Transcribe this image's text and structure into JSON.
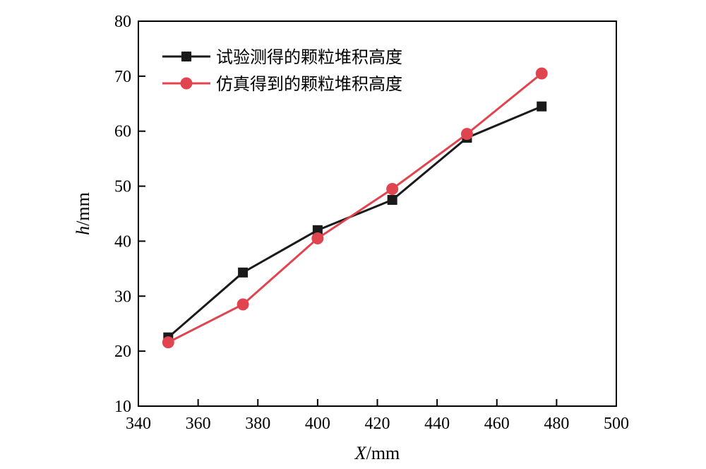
{
  "chart_data": {
    "type": "line",
    "xlabel_var": "X",
    "xlabel_unit": "/mm",
    "ylabel_var": "h",
    "ylabel_unit": "/mm",
    "xlim": [
      340,
      500
    ],
    "ylim": [
      10,
      80
    ],
    "xticks": [
      340,
      360,
      380,
      400,
      420,
      440,
      460,
      480,
      500
    ],
    "yticks": [
      10,
      20,
      30,
      40,
      50,
      60,
      70,
      80
    ],
    "grid": false,
    "legend_position": "top-left",
    "series": [
      {
        "name": "试验测得的颗粒堆积高度",
        "color": "#1a1a1a",
        "marker": "square",
        "x": [
          350,
          375,
          400,
          425,
          450,
          475
        ],
        "y": [
          22.5,
          34.3,
          42.0,
          47.5,
          58.8,
          64.5
        ]
      },
      {
        "name": "仿真得到的颗粒堆积高度",
        "color": "#e0454f",
        "marker": "circle",
        "x": [
          350,
          375,
          400,
          425,
          450,
          475
        ],
        "y": [
          21.6,
          28.5,
          40.5,
          49.5,
          59.5,
          70.5
        ]
      }
    ]
  }
}
